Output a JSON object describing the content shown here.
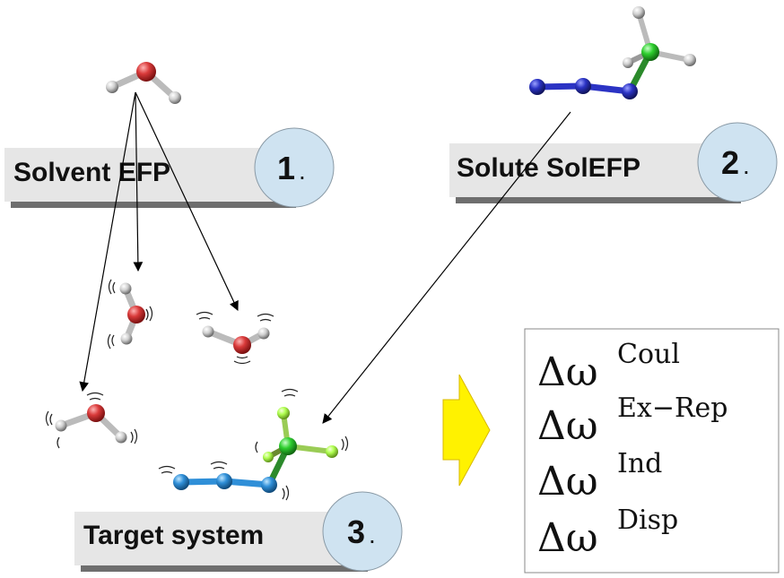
{
  "steps": [
    {
      "label": "Solvent EFP",
      "number": "1",
      "suffix": "."
    },
    {
      "label": "Solute SolEFP",
      "number": "2",
      "suffix": "."
    },
    {
      "label": "Target system",
      "number": "3",
      "suffix": "."
    }
  ],
  "terms": [
    {
      "base": "Δω",
      "sup": "Coul"
    },
    {
      "base": "Δω",
      "sup": "Ex−Rep"
    },
    {
      "base": "Δω",
      "sup": "Ind"
    },
    {
      "base": "Δω",
      "sup": "Disp"
    }
  ],
  "colors": {
    "banner_fill": "#e6e6e6",
    "banner_shadow": "#6e6e6e",
    "circle_fill": "#cfe3f1",
    "oxygen": "#d93a3a",
    "hydrogen": "#d8d8d8",
    "nitrogen": "#2b33c4",
    "nitrogen_target": "#2f8fd8",
    "carbon": "#2fcf2f",
    "fluorine": "#b0ff50",
    "arrow_fill": "#fff200",
    "arrow_stroke": "#d8b800"
  }
}
